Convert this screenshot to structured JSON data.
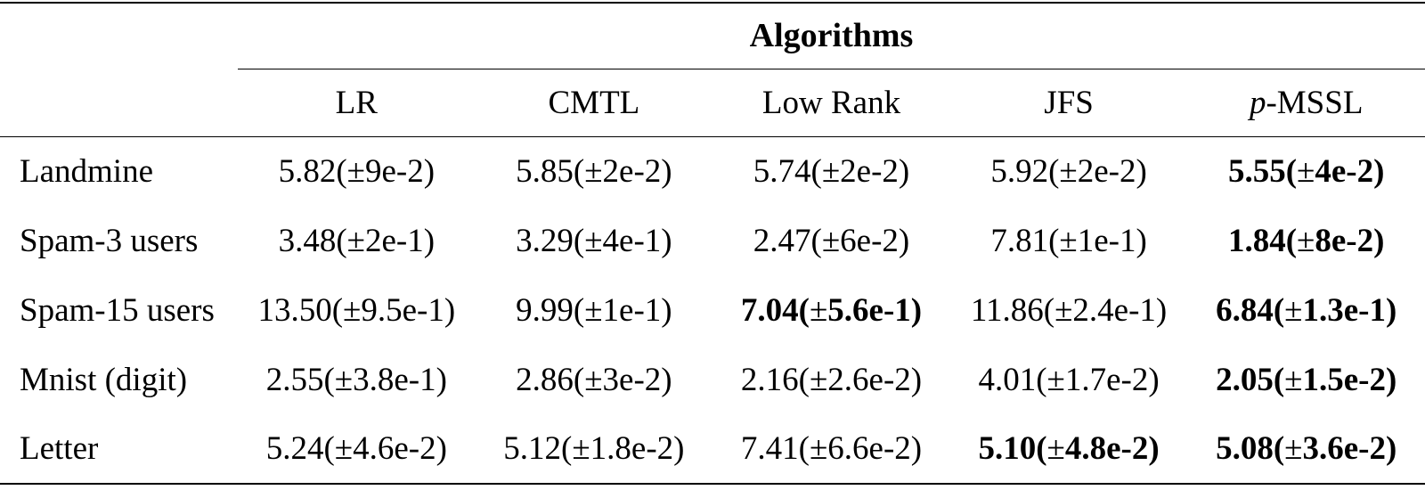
{
  "table": {
    "group_header": "Algorithms",
    "columns": [
      {
        "italic_prefix": "",
        "label": "LR"
      },
      {
        "italic_prefix": "",
        "label": "CMTL"
      },
      {
        "italic_prefix": "",
        "label": "Low Rank"
      },
      {
        "italic_prefix": "",
        "label": "JFS"
      },
      {
        "italic_prefix": "p",
        "label": "-MSSL"
      }
    ],
    "rows": [
      {
        "label": "Landmine",
        "values": [
          {
            "text": "5.82(±9e-2)",
            "bold": false
          },
          {
            "text": "5.85(±2e-2)",
            "bold": false
          },
          {
            "text": "5.74(±2e-2)",
            "bold": false
          },
          {
            "text": "5.92(±2e-2)",
            "bold": false
          },
          {
            "text": "5.55(±4e-2)",
            "bold": true
          }
        ]
      },
      {
        "label": "Spam-3 users",
        "values": [
          {
            "text": "3.48(±2e-1)",
            "bold": false
          },
          {
            "text": "3.29(±4e-1)",
            "bold": false
          },
          {
            "text": "2.47(±6e-2)",
            "bold": false
          },
          {
            "text": "7.81(±1e-1)",
            "bold": false
          },
          {
            "text": "1.84(±8e-2)",
            "bold": true
          }
        ]
      },
      {
        "label": "Spam-15 users",
        "values": [
          {
            "text": "13.50(±9.5e-1)",
            "bold": false
          },
          {
            "text": "9.99(±1e-1)",
            "bold": false
          },
          {
            "text": "7.04(±5.6e-1)",
            "bold": true
          },
          {
            "text": "11.86(±2.4e-1)",
            "bold": false
          },
          {
            "text": "6.84(±1.3e-1)",
            "bold": true
          }
        ]
      },
      {
        "label": "Mnist (digit)",
        "values": [
          {
            "text": "2.55(±3.8e-1)",
            "bold": false
          },
          {
            "text": "2.86(±3e-2)",
            "bold": false
          },
          {
            "text": "2.16(±2.6e-2)",
            "bold": false
          },
          {
            "text": "4.01(±1.7e-2)",
            "bold": false
          },
          {
            "text": "2.05(±1.5e-2)",
            "bold": true
          }
        ]
      },
      {
        "label": "Letter",
        "values": [
          {
            "text": "5.24(±4.6e-2)",
            "bold": false
          },
          {
            "text": "5.12(±1.8e-2)",
            "bold": false
          },
          {
            "text": "7.41(±6.6e-2)",
            "bold": false
          },
          {
            "text": "5.10(±4.8e-2)",
            "bold": true
          },
          {
            "text": "5.08(±3.6e-2)",
            "bold": true
          }
        ]
      }
    ]
  },
  "colors": {
    "text": "#000000",
    "background": "#ffffff",
    "rule": "#000000"
  }
}
